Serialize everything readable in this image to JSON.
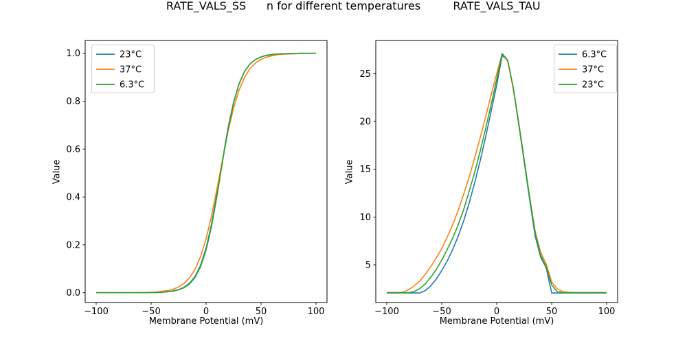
{
  "figure": {
    "suptitle": "n for different temperatures",
    "background": "#ffffff",
    "text_color": "#000000",
    "spine_color": "#000000",
    "legend_border_color": "#cccccc"
  },
  "chart_data": [
    {
      "type": "line",
      "title": "RATE_VALS_SS",
      "xlabel": "Membrane Potential (mV)",
      "ylabel": "Value",
      "grid": false,
      "legend_position": "upper left",
      "xlim": [
        -110,
        110
      ],
      "ylim": [
        -0.05,
        1.05
      ],
      "xticks": [
        -100,
        -50,
        0,
        50,
        100
      ],
      "xtick_labels": [
        "−100",
        "−50",
        "0",
        "50",
        "100"
      ],
      "yticks": [
        0.0,
        0.2,
        0.4,
        0.6,
        0.8,
        1.0
      ],
      "ytick_labels": [
        "0.0",
        "0.2",
        "0.4",
        "0.6",
        "0.8",
        "1.0"
      ],
      "x": [
        -100,
        -95,
        -90,
        -85,
        -80,
        -75,
        -70,
        -65,
        -60,
        -55,
        -50,
        -45,
        -40,
        -35,
        -30,
        -25,
        -20,
        -15,
        -10,
        -5,
        0,
        5,
        10,
        15,
        20,
        25,
        30,
        35,
        40,
        45,
        50,
        55,
        60,
        65,
        70,
        75,
        80,
        85,
        90,
        95,
        100
      ],
      "series": [
        {
          "name": "23°C",
          "color": "#1f77b4",
          "values": [
            0,
            0,
            0,
            0,
            0,
            0,
            0,
            0,
            0,
            0,
            0.001,
            0.001,
            0.002,
            0.004,
            0.008,
            0.013,
            0.023,
            0.04,
            0.068,
            0.115,
            0.186,
            0.287,
            0.416,
            0.557,
            0.689,
            0.796,
            0.873,
            0.924,
            0.956,
            0.974,
            0.985,
            0.992,
            0.995,
            0.997,
            0.998,
            0.999,
            0.999,
            1,
            1,
            1,
            1
          ]
        },
        {
          "name": "37°C",
          "color": "#ff7f0e",
          "values": [
            0,
            0,
            0,
            0,
            0,
            0,
            0,
            0,
            0.001,
            0.001,
            0.002,
            0.003,
            0.006,
            0.009,
            0.015,
            0.024,
            0.039,
            0.063,
            0.098,
            0.151,
            0.225,
            0.322,
            0.437,
            0.558,
            0.674,
            0.771,
            0.846,
            0.9,
            0.936,
            0.96,
            0.975,
            0.984,
            0.99,
            0.994,
            0.996,
            0.997,
            0.998,
            0.999,
            0.999,
            1,
            1
          ]
        },
        {
          "name": "6.3°C",
          "color": "#2ca02c",
          "values": [
            0,
            0,
            0,
            0,
            0,
            0,
            0,
            0,
            0,
            0,
            0.001,
            0.001,
            0.002,
            0.004,
            0.007,
            0.012,
            0.021,
            0.037,
            0.064,
            0.109,
            0.178,
            0.278,
            0.406,
            0.549,
            0.684,
            0.793,
            0.872,
            0.924,
            0.956,
            0.974,
            0.985,
            0.991,
            0.995,
            0.997,
            0.998,
            0.999,
            0.999,
            1,
            1,
            1,
            1
          ]
        }
      ]
    },
    {
      "type": "line",
      "title": "RATE_VALS_TAU",
      "xlabel": "Membrane Potential (mV)",
      "ylabel": "Value",
      "grid": false,
      "legend_position": "upper right",
      "xlim": [
        -110,
        110
      ],
      "ylim": [
        0.8,
        28.4
      ],
      "xticks": [
        -100,
        -50,
        0,
        50,
        100
      ],
      "xtick_labels": [
        "−100",
        "−50",
        "0",
        "50",
        "100"
      ],
      "yticks": [
        5,
        10,
        15,
        20,
        25
      ],
      "ytick_labels": [
        "5",
        "10",
        "15",
        "20",
        "25"
      ],
      "x": [
        -100,
        -95,
        -90,
        -85,
        -80,
        -75,
        -70,
        -65,
        -60,
        -55,
        -50,
        -45,
        -40,
        -35,
        -30,
        -25,
        -20,
        -15,
        -10,
        -5,
        0,
        5,
        10,
        15,
        20,
        25,
        30,
        35,
        40,
        45,
        50,
        55,
        60,
        65,
        70,
        75,
        80,
        85,
        90,
        95,
        100
      ],
      "series": [
        {
          "name": "6.3°C",
          "color": "#1f77b4",
          "values": [
            2.05,
            2.05,
            2.05,
            2.05,
            2.05,
            2.05,
            2.05,
            2.3,
            2.8,
            3.5,
            4.4,
            5.4,
            6.6,
            8.0,
            9.6,
            11.5,
            13.6,
            15.9,
            18.4,
            21.1,
            23.8,
            26.9,
            26.4,
            23.5,
            19.7,
            15.8,
            11.8,
            8.0,
            5.8,
            4.7,
            2.05,
            2.05,
            2.05,
            2.05,
            2.05,
            2.05,
            2.05,
            2.05,
            2.05,
            2.05,
            2.05
          ]
        },
        {
          "name": "37°C",
          "color": "#ff7f0e",
          "values": [
            2.1,
            2.1,
            2.1,
            2.15,
            2.4,
            2.8,
            3.3,
            4.0,
            4.8,
            5.7,
            6.7,
            7.9,
            9.2,
            10.7,
            12.4,
            14.2,
            16.2,
            18.3,
            20.5,
            22.8,
            25.0,
            27.1,
            26.3,
            23.5,
            19.8,
            16.0,
            12.1,
            8.5,
            6.3,
            5.1,
            3.2,
            2.5,
            2.2,
            2.12,
            2.1,
            2.1,
            2.1,
            2.1,
            2.1,
            2.1,
            2.1
          ]
        },
        {
          "name": "23°C",
          "color": "#2ca02c",
          "values": [
            2.08,
            2.08,
            2.08,
            2.08,
            2.08,
            2.2,
            2.5,
            3.0,
            3.7,
            4.5,
            5.5,
            6.6,
            7.8,
            9.2,
            10.8,
            12.7,
            14.7,
            16.9,
            19.3,
            21.8,
            24.4,
            27.1,
            26.4,
            23.6,
            19.9,
            16.0,
            12.0,
            8.3,
            6.0,
            4.8,
            2.9,
            2.2,
            2.08,
            2.08,
            2.08,
            2.08,
            2.08,
            2.08,
            2.08,
            2.08,
            2.08
          ]
        }
      ]
    }
  ]
}
